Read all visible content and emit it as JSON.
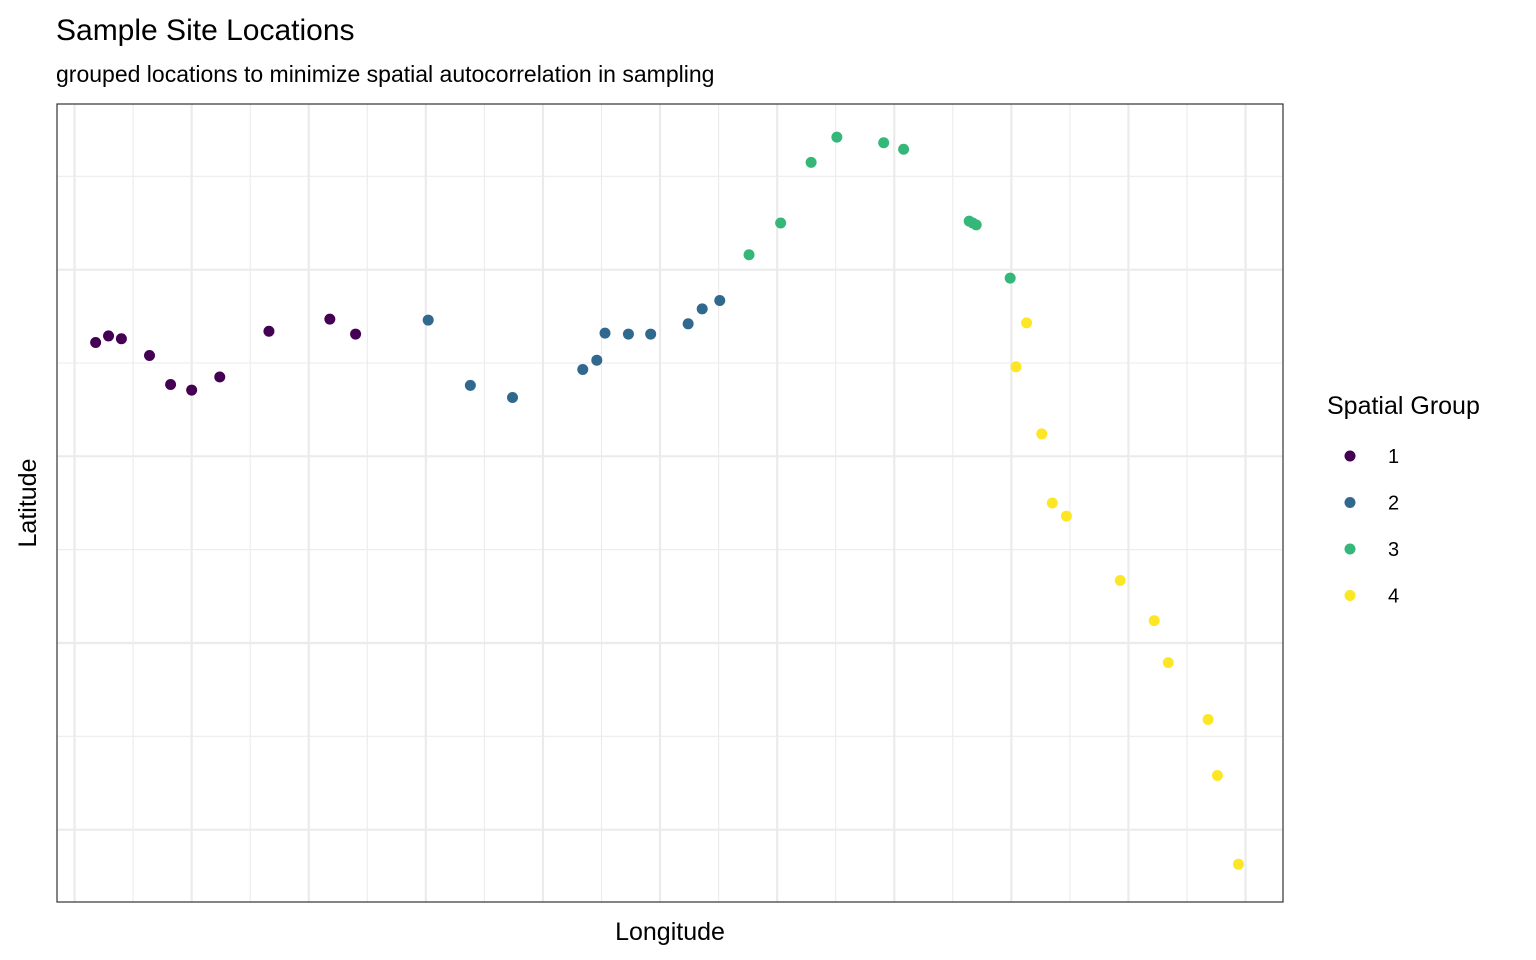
{
  "chart_data": {
    "type": "scatter",
    "title": "Sample Site Locations",
    "subtitle": "grouped locations to minimize spatial autocorrelation in sampling",
    "xlabel": "Longitude",
    "ylabel": "Latitude",
    "xlim": [
      -1.5,
      103.2
    ],
    "ylim": [
      -7.75,
      77.75
    ],
    "x_ticks_labeled": false,
    "y_ticks_labeled": false,
    "grid": true,
    "panel_border": true,
    "legend": {
      "title": "Spatial Group",
      "position": "right"
    },
    "series": [
      {
        "name": "1",
        "color": "#440154",
        "points": [
          {
            "x": 1.8,
            "y": 52.2
          },
          {
            "x": 2.9,
            "y": 52.9
          },
          {
            "x": 4.0,
            "y": 52.6
          },
          {
            "x": 6.4,
            "y": 50.8
          },
          {
            "x": 8.2,
            "y": 47.7
          },
          {
            "x": 10.0,
            "y": 47.1
          },
          {
            "x": 12.4,
            "y": 48.5
          },
          {
            "x": 16.6,
            "y": 53.4
          },
          {
            "x": 21.8,
            "y": 54.7
          },
          {
            "x": 24.0,
            "y": 53.1
          }
        ]
      },
      {
        "name": "2",
        "color": "#31688e",
        "points": [
          {
            "x": 30.2,
            "y": 54.6
          },
          {
            "x": 33.8,
            "y": 47.6
          },
          {
            "x": 37.4,
            "y": 46.3
          },
          {
            "x": 43.4,
            "y": 49.3
          },
          {
            "x": 44.6,
            "y": 50.3
          },
          {
            "x": 45.3,
            "y": 53.2
          },
          {
            "x": 47.3,
            "y": 53.1
          },
          {
            "x": 49.2,
            "y": 53.1
          },
          {
            "x": 52.4,
            "y": 54.2
          },
          {
            "x": 53.6,
            "y": 55.8
          },
          {
            "x": 55.1,
            "y": 56.7
          }
        ]
      },
      {
        "name": "3",
        "color": "#35b779",
        "points": [
          {
            "x": 57.6,
            "y": 61.6
          },
          {
            "x": 60.3,
            "y": 65.0
          },
          {
            "x": 62.9,
            "y": 71.5
          },
          {
            "x": 65.1,
            "y": 74.2
          },
          {
            "x": 69.1,
            "y": 73.6
          },
          {
            "x": 70.8,
            "y": 72.9
          },
          {
            "x": 76.4,
            "y": 65.2
          },
          {
            "x": 76.7,
            "y": 65.0
          },
          {
            "x": 77.0,
            "y": 64.8
          },
          {
            "x": 79.9,
            "y": 59.1
          }
        ]
      },
      {
        "name": "4",
        "color": "#fde725",
        "points": [
          {
            "x": 81.3,
            "y": 54.3
          },
          {
            "x": 80.4,
            "y": 49.6
          },
          {
            "x": 82.6,
            "y": 42.4
          },
          {
            "x": 83.5,
            "y": 35.0
          },
          {
            "x": 84.7,
            "y": 33.6
          },
          {
            "x": 89.3,
            "y": 26.7
          },
          {
            "x": 92.2,
            "y": 22.4
          },
          {
            "x": 93.4,
            "y": 17.9
          },
          {
            "x": 96.8,
            "y": 11.8
          },
          {
            "x": 97.6,
            "y": 5.8
          },
          {
            "x": 99.4,
            "y": -3.7
          }
        ]
      }
    ]
  }
}
